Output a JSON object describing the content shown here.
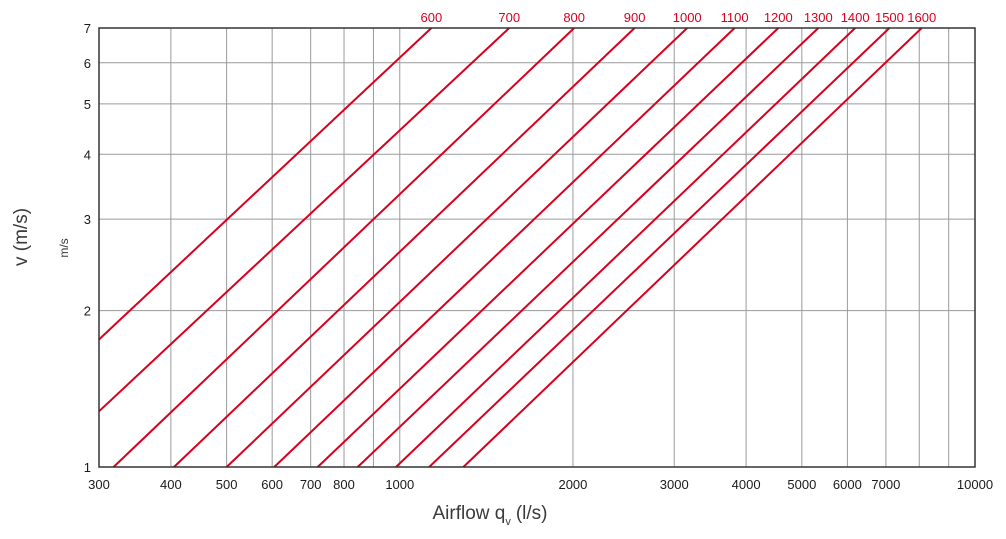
{
  "chart_data": {
    "type": "line",
    "x_scale": "log",
    "y_scale": "log",
    "xlim": [
      300,
      10000
    ],
    "ylim": [
      1,
      7
    ],
    "grid": true,
    "xlabel": "Airflow q",
    "xlabel_sub": "v",
    "xlabel_unit": "(l/s)",
    "ylabel": "v (m/s)",
    "ylabel_secondary": "m/s",
    "x_ticks": [
      {
        "value": 300,
        "label": "300"
      },
      {
        "value": 400,
        "label": "400"
      },
      {
        "value": 500,
        "label": "500"
      },
      {
        "value": 600,
        "label": "600"
      },
      {
        "value": 700,
        "label": "700"
      },
      {
        "value": 800,
        "label": "800"
      },
      {
        "value": 1000,
        "label": "1000"
      },
      {
        "value": 2000,
        "label": "2000"
      },
      {
        "value": 3000,
        "label": "3000"
      },
      {
        "value": 4000,
        "label": "4000"
      },
      {
        "value": 5000,
        "label": "5000"
      },
      {
        "value": 6000,
        "label": "6000"
      },
      {
        "value": 7000,
        "label": "7000"
      },
      {
        "value": 10000,
        "label": "10000"
      }
    ],
    "x_grid": [
      300,
      400,
      500,
      600,
      700,
      800,
      900,
      1000,
      2000,
      3000,
      4000,
      5000,
      6000,
      7000,
      8000,
      9000,
      10000
    ],
    "y_ticks": [
      {
        "value": 1,
        "label": "1"
      },
      {
        "value": 2,
        "label": "2"
      },
      {
        "value": 3,
        "label": "3"
      },
      {
        "value": 4,
        "label": "4"
      },
      {
        "value": 5,
        "label": "5"
      },
      {
        "value": 6,
        "label": "6"
      },
      {
        "value": 7,
        "label": "7"
      }
    ],
    "series": [
      {
        "name": "600",
        "points": [
          [
            300,
            1.76
          ],
          [
            1135,
            7
          ]
        ]
      },
      {
        "name": "700",
        "points": [
          [
            300,
            1.28
          ],
          [
            1550,
            7
          ]
        ]
      },
      {
        "name": "800",
        "points": [
          [
            318,
            1
          ],
          [
            2010,
            7
          ]
        ]
      },
      {
        "name": "900",
        "points": [
          [
            405,
            1
          ],
          [
            2560,
            7
          ]
        ]
      },
      {
        "name": "1000",
        "points": [
          [
            500,
            1
          ],
          [
            3160,
            7
          ]
        ]
      },
      {
        "name": "1100",
        "points": [
          [
            605,
            1
          ],
          [
            3820,
            7
          ]
        ]
      },
      {
        "name": "1200",
        "points": [
          [
            720,
            1
          ],
          [
            4550,
            7
          ]
        ]
      },
      {
        "name": "1300",
        "points": [
          [
            845,
            1
          ],
          [
            5340,
            7
          ]
        ]
      },
      {
        "name": "1400",
        "points": [
          [
            985,
            1
          ],
          [
            6190,
            7
          ]
        ]
      },
      {
        "name": "1500",
        "points": [
          [
            1125,
            1
          ],
          [
            7100,
            7
          ]
        ]
      },
      {
        "name": "1600",
        "points": [
          [
            1290,
            1
          ],
          [
            8080,
            7
          ]
        ]
      }
    ],
    "colors": {
      "line": "#d8001e",
      "label": "#d8001e",
      "grid": "#9a9a9a",
      "frame": "#333333",
      "tick_text": "#1a1a1a",
      "axis_title": "#3a3a3a"
    }
  }
}
